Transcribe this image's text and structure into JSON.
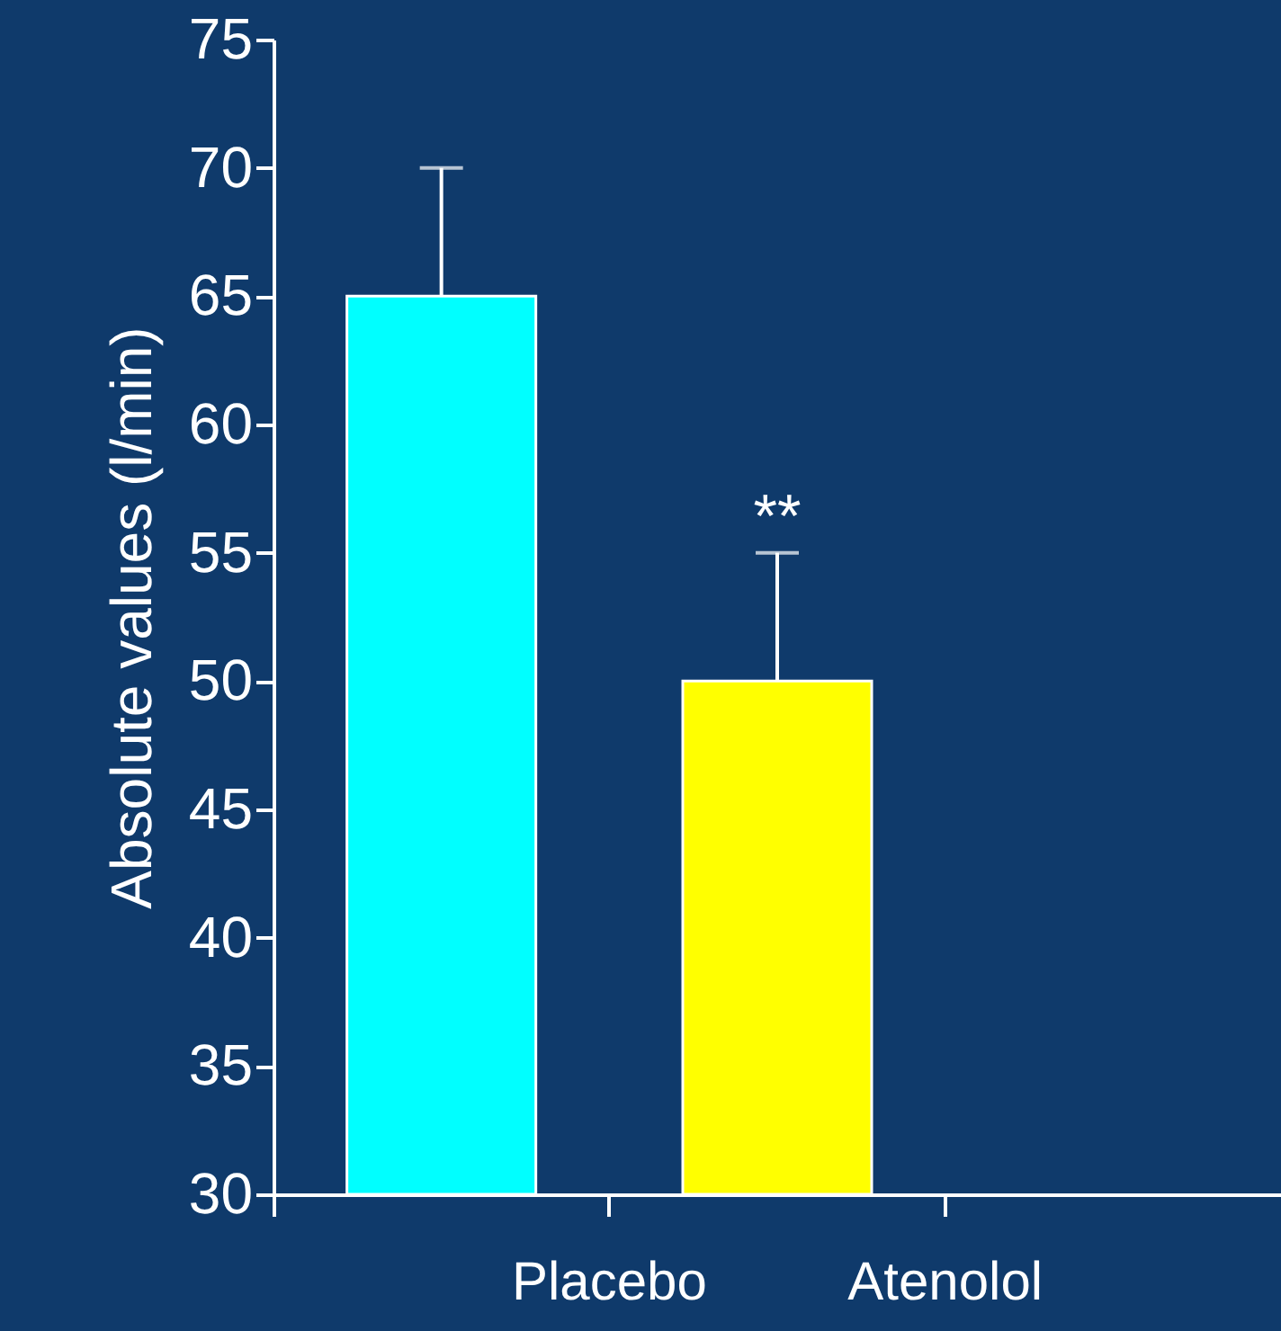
{
  "chart_data": {
    "type": "bar",
    "ylabel": "Absolute values (l/min)",
    "categories": [
      "Placebo",
      "Atenolol",
      null
    ],
    "values": [
      65,
      50,
      null
    ],
    "colors": [
      "#00ffff",
      "#ffff00",
      null
    ],
    "errors": [
      [
        65,
        70
      ],
      [
        50,
        55
      ],
      null
    ],
    "ylim": [
      30,
      75
    ],
    "yticks": [
      30,
      35,
      40,
      45,
      50,
      55,
      60,
      65,
      70,
      75
    ],
    "annotations": [
      "**"
    ],
    "grid": false
  }
}
